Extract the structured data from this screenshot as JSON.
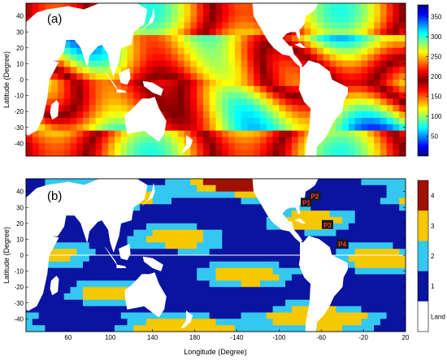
{
  "chart_data": [
    {
      "type": "heatmap",
      "panel_label": "(a)",
      "ylabel": "Latitude (Degree)",
      "xlim": [
        20,
        380
      ],
      "ylim": [
        -48,
        48
      ],
      "yticks": [
        -40,
        -30,
        -20,
        -10,
        0,
        10,
        20,
        30,
        40
      ],
      "xticks": [],
      "colorbar": {
        "range": [
          0,
          380
        ],
        "ticks": [
          50,
          100,
          150,
          200,
          250,
          300,
          350
        ],
        "colormap": "jet",
        "colors": [
          "#00007f",
          "#0000ff",
          "#0080ff",
          "#00ffff",
          "#80ff80",
          "#ffff00",
          "#ff8000",
          "#ff0000",
          "#7f0000",
          "#ff0000",
          "#ff8000",
          "#ffff00",
          "#80ff80",
          "#00ffff",
          "#0080ff",
          "#0000ff",
          "#00007f"
        ]
      }
    },
    {
      "type": "heatmap",
      "panel_label": "(b)",
      "xlabel": "Longitude (Degree)",
      "ylabel": "Latitude (Degree)",
      "xlim": [
        20,
        380
      ],
      "ylim": [
        -48,
        48
      ],
      "xticks": [
        60,
        100,
        140,
        180,
        -140,
        -100,
        -60,
        -20,
        20
      ],
      "yticks": [
        -40,
        -30,
        -20,
        -10,
        0,
        10,
        20,
        30,
        40
      ],
      "colorbar": {
        "categories": [
          "Land",
          "1",
          "2",
          "3",
          "4"
        ],
        "colors": [
          "#ffffff",
          "#0a14a0",
          "#34c8f0",
          "#f5c800",
          "#a01000"
        ]
      },
      "points": [
        {
          "label": "P1",
          "lon": -74,
          "lat": 33
        },
        {
          "label": "P2",
          "lon": -66,
          "lat": 37
        },
        {
          "label": "P3",
          "lon": -54,
          "lat": 19
        },
        {
          "label": "P4",
          "lon": -40,
          "lat": 7
        }
      ]
    }
  ]
}
